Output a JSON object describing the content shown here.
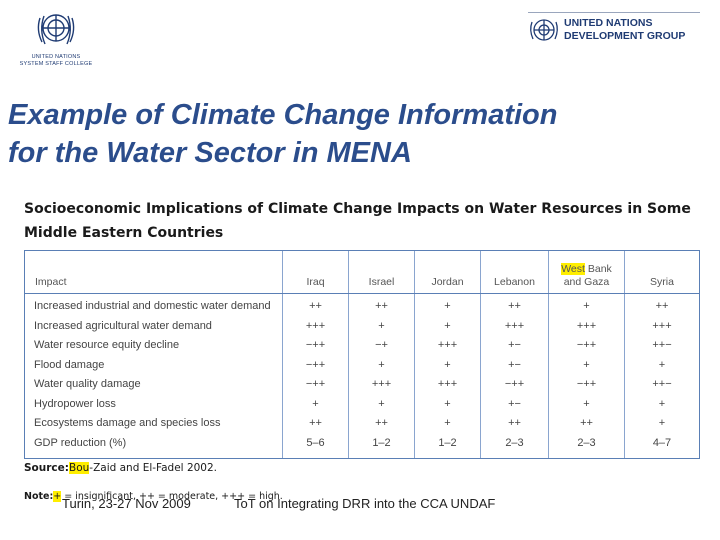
{
  "logos": {
    "left_caption_line1": "UNITED NATIONS",
    "left_caption_line2": "SYSTEM STAFF COLLEGE",
    "right_line1": "UNITED NATIONS",
    "right_line2": "DEVELOPMENT GROUP"
  },
  "slide": {
    "title_line1": "Example of Climate Change Information",
    "title_line2": "for the Water Sector in MENA"
  },
  "figure": {
    "title_line1": "Socioeconomic Implications of Climate Change Impacts on Water Resources in Some",
    "title_line2": "Middle Eastern Countries",
    "headers": {
      "impact": "Impact",
      "iraq": "Iraq",
      "israel": "Israel",
      "jordan": "Jordan",
      "lebanon": "Lebanon",
      "westbank_a": "West",
      "westbank_b": "Bank",
      "westbank_c": "and Gaza",
      "syria": "Syria"
    },
    "rows": [
      {
        "impact": "Increased industrial and domestic water demand",
        "iraq": "++",
        "israel": "++",
        "jordan": "+",
        "lebanon": "++",
        "westbank": "+",
        "syria": "++"
      },
      {
        "impact": "Increased agricultural water demand",
        "iraq": "+++",
        "israel": "+",
        "jordan": "+",
        "lebanon": "+++",
        "westbank": "+++",
        "syria": "+++"
      },
      {
        "impact": "Water resource equity decline",
        "iraq": "−++",
        "israel": "−+",
        "jordan": "+++",
        "lebanon": "+−",
        "westbank": "−++",
        "syria": "++−"
      },
      {
        "impact": "Flood damage",
        "iraq": "−++",
        "israel": "+",
        "jordan": "+",
        "lebanon": "+−",
        "westbank": "+",
        "syria": "+"
      },
      {
        "impact": "Water quality damage",
        "iraq": "−++",
        "israel": "+++",
        "jordan": "+++",
        "lebanon": "−++",
        "westbank": "−++",
        "syria": "++−"
      },
      {
        "impact": "Hydropower loss",
        "iraq": "+",
        "israel": "+",
        "jordan": "+",
        "lebanon": "+−",
        "westbank": "+",
        "syria": "+"
      },
      {
        "impact": "Ecosystems damage and species loss",
        "iraq": "++",
        "israel": "++",
        "jordan": "+",
        "lebanon": "++",
        "westbank": "++",
        "syria": "+"
      },
      {
        "impact": "GDP reduction (%)",
        "iraq": "5–6",
        "israel": "1–2",
        "jordan": "1–2",
        "lebanon": "2–3",
        "westbank": "2–3",
        "syria": "4–7"
      }
    ],
    "source_label": "Source:",
    "source_highlight": "Bou",
    "source_rest": "-Zaid and El-Fadel 2002.",
    "note_label": "Note:",
    "note_highlight": "+",
    "note_rest": " = insignificant, ++ = moderate, +++ = high."
  },
  "footer": {
    "left": "Turin, 23-27 Nov 2009",
    "right": "ToT on Integrating DRR into the CCA UNDAF"
  }
}
